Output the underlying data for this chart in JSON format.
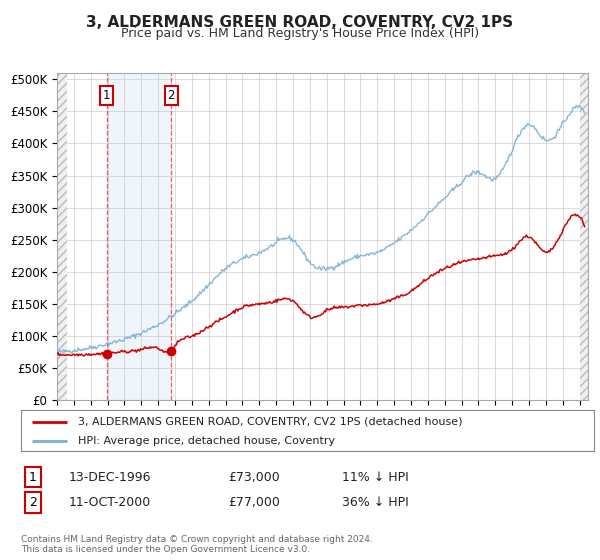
{
  "title": "3, ALDERMANS GREEN ROAD, COVENTRY, CV2 1PS",
  "subtitle": "Price paid vs. HM Land Registry's House Price Index (HPI)",
  "ylabel_ticks": [
    "£0",
    "£50K",
    "£100K",
    "£150K",
    "£200K",
    "£250K",
    "£300K",
    "£350K",
    "£400K",
    "£450K",
    "£500K"
  ],
  "ytick_values": [
    0,
    50000,
    100000,
    150000,
    200000,
    250000,
    300000,
    350000,
    400000,
    450000,
    500000
  ],
  "ylim": [
    0,
    510000
  ],
  "xlim_start": 1994.0,
  "xlim_end": 2025.5,
  "hpi_color": "#7aaed6",
  "price_color": "#cc0000",
  "sale1_date": 1996.95,
  "sale1_price": 73000,
  "sale2_date": 2000.78,
  "sale2_price": 77000,
  "legend_line1": "3, ALDERMANS GREEN ROAD, COVENTRY, CV2 1PS (detached house)",
  "legend_line2": "HPI: Average price, detached house, Coventry",
  "table_row1_num": "1",
  "table_row1_date": "13-DEC-1996",
  "table_row1_price": "£73,000",
  "table_row1_hpi": "11% ↓ HPI",
  "table_row2_num": "2",
  "table_row2_date": "11-OCT-2000",
  "table_row2_price": "£77,000",
  "table_row2_hpi": "36% ↓ HPI",
  "footnote": "Contains HM Land Registry data © Crown copyright and database right 2024.\nThis data is licensed under the Open Government Licence v3.0.",
  "background_color": "#ffffff",
  "plot_bg_color": "#ffffff",
  "grid_color": "#cccccc",
  "shade_color": "#ddeeff"
}
